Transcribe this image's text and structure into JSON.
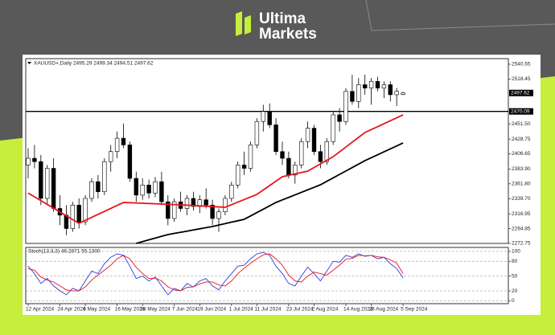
{
  "brand": {
    "line1": "Ultima",
    "line2": "Markets"
  },
  "chart_data": [
    {
      "type": "candlestick",
      "title": "XAUUSD+,Daily  2495.29 2499.34 2494.51 2497.62",
      "categories": [
        "12 Apr 2024",
        null,
        null,
        null,
        null,
        "24 Apr 2024",
        null,
        null,
        null,
        "6 May 2024",
        null,
        null,
        null,
        null,
        "16 May 2024",
        null,
        null,
        null,
        "28 May 2024",
        null,
        null,
        null,
        null,
        "7 Jun 2024",
        null,
        null,
        null,
        "19 Jun 2024",
        null,
        null,
        null,
        null,
        "1 Jul 2024",
        null,
        null,
        null,
        "11 Jul 2024",
        null,
        null,
        null,
        null,
        "23 Jul 2024",
        null,
        null,
        null,
        "2 Aug 2024",
        null,
        null,
        null,
        null,
        "14 Aug 2024",
        null,
        null,
        null,
        "26 Aug 2024",
        null,
        null,
        null,
        null,
        "5 Sep 2024"
      ],
      "candles": [
        [
          2390,
          2415,
          2370,
          2400
        ],
        [
          2400,
          2420,
          2385,
          2395
        ],
        [
          2395,
          2405,
          2330,
          2340
        ],
        [
          2340,
          2390,
          2330,
          2385
        ],
        [
          2385,
          2400,
          2320,
          2325
        ],
        [
          2325,
          2345,
          2300,
          2315
        ],
        [
          2315,
          2330,
          2285,
          2295
        ],
        [
          2295,
          2335,
          2290,
          2330
        ],
        [
          2330,
          2340,
          2295,
          2305
        ],
        [
          2305,
          2345,
          2300,
          2340
        ],
        [
          2340,
          2370,
          2335,
          2365
        ],
        [
          2365,
          2375,
          2340,
          2350
        ],
        [
          2350,
          2400,
          2345,
          2395
        ],
        [
          2395,
          2420,
          2380,
          2410
        ],
        [
          2410,
          2440,
          2400,
          2430
        ],
        [
          2430,
          2452,
          2415,
          2420
        ],
        [
          2420,
          2425,
          2365,
          2370
        ],
        [
          2370,
          2380,
          2335,
          2345
        ],
        [
          2345,
          2370,
          2338,
          2360
        ],
        [
          2360,
          2368,
          2340,
          2348
        ],
        [
          2348,
          2372,
          2342,
          2365
        ],
        [
          2365,
          2380,
          2330,
          2335
        ],
        [
          2335,
          2345,
          2300,
          2310
        ],
        [
          2310,
          2340,
          2305,
          2335
        ],
        [
          2335,
          2350,
          2320,
          2325
        ],
        [
          2325,
          2345,
          2315,
          2340
        ],
        [
          2340,
          2350,
          2322,
          2328
        ],
        [
          2328,
          2345,
          2318,
          2338
        ],
        [
          2338,
          2355,
          2325,
          2330
        ],
        [
          2330,
          2338,
          2300,
          2310
        ],
        [
          2310,
          2325,
          2290,
          2320
        ],
        [
          2320,
          2345,
          2315,
          2340
        ],
        [
          2340,
          2365,
          2335,
          2360
        ],
        [
          2360,
          2395,
          2355,
          2390
        ],
        [
          2390,
          2410,
          2375,
          2385
        ],
        [
          2385,
          2425,
          2380,
          2420
        ],
        [
          2420,
          2460,
          2415,
          2455
        ],
        [
          2455,
          2480,
          2440,
          2470
        ],
        [
          2470,
          2482,
          2445,
          2450
        ],
        [
          2450,
          2460,
          2405,
          2410
        ],
        [
          2410,
          2425,
          2390,
          2400
        ],
        [
          2400,
          2410,
          2370,
          2375
        ],
        [
          2375,
          2395,
          2362,
          2390
        ],
        [
          2390,
          2430,
          2385,
          2425
        ],
        [
          2425,
          2455,
          2415,
          2445
        ],
        [
          2445,
          2450,
          2405,
          2410
        ],
        [
          2410,
          2420,
          2385,
          2395
        ],
        [
          2395,
          2430,
          2390,
          2425
        ],
        [
          2425,
          2470,
          2420,
          2465
        ],
        [
          2465,
          2475,
          2440,
          2455
        ],
        [
          2455,
          2505,
          2450,
          2500
        ],
        [
          2500,
          2525,
          2480,
          2485
        ],
        [
          2485,
          2520,
          2475,
          2510
        ],
        [
          2510,
          2525,
          2495,
          2505
        ],
        [
          2505,
          2520,
          2480,
          2515
        ],
        [
          2515,
          2522,
          2500,
          2505
        ],
        [
          2505,
          2515,
          2490,
          2510
        ],
        [
          2510,
          2515,
          2485,
          2495
        ],
        [
          2495,
          2505,
          2478,
          2500
        ],
        [
          2495.29,
          2499.34,
          2494.51,
          2497.62
        ]
      ],
      "up_color": "#ffffff",
      "down_color": "#000000",
      "series": [
        {
          "color": "#e8141c",
          "values": [
            2348,
            2342.4,
            2336.7,
            2331.1,
            2325.4,
            2319.8,
            2314.1,
            2308.5,
            2302.8,
            2307.3,
            2311.7,
            2316.2,
            2320.6,
            2325.1,
            2329.5,
            2334,
            2333.6,
            2333.2,
            2332.8,
            2332.4,
            2332,
            2331.6,
            2331.2,
            2330.8,
            2330.4,
            2329.9,
            2329.4,
            2328.9,
            2328.3,
            2327.8,
            2327.3,
            2326.8,
            2330.6,
            2334.5,
            2338.3,
            2342.2,
            2346,
            2352.6,
            2359.2,
            2365.8,
            2372.4,
            2374.5,
            2376.6,
            2378.7,
            2380.8,
            2386.2,
            2391.6,
            2397,
            2402.4,
            2409.6,
            2416.8,
            2424.1,
            2431.3,
            2438.5,
            2442.9,
            2447.3,
            2451.7,
            2456.1,
            2460.5,
            2464.9
          ]
        },
        {
          "color": "#000000",
          "values": [
            null,
            null,
            null,
            null,
            null,
            null,
            null,
            null,
            null,
            null,
            null,
            null,
            null,
            null,
            null,
            null,
            null,
            2272.8,
            2275.4,
            2278.1,
            2280.7,
            2283.4,
            2286,
            2287.7,
            2289.4,
            2291.1,
            2292.9,
            2294.6,
            2296.3,
            2298,
            2300.2,
            2302.3,
            2304.5,
            2306.6,
            2308.8,
            2313.8,
            2318.9,
            2323.9,
            2329,
            2334,
            2337.8,
            2341.5,
            2345.3,
            2349.1,
            2352.9,
            2356.6,
            2360.4,
            2365.6,
            2370.7,
            2375.9,
            2381,
            2386.2,
            2391.3,
            2396.5,
            2400.9,
            2405.3,
            2409.7,
            2414.1,
            2418.5,
            2422.9
          ]
        }
      ],
      "hline": 2470.09,
      "ylim": [
        2272.75,
        2548.96
      ],
      "yticks": [
        2540.55,
        2518.45,
        {
          "value": 2451.5,
          "label": "2451.50"
        },
        2428.75,
        2406.65,
        {
          "value": 2383.9,
          "label": "2383.90"
        },
        {
          "value": 2361.8,
          "label": "2361.80"
        },
        {
          "value": 2339.7,
          "label": "2339.70"
        },
        2316.95,
        2294.85,
        2272.75
      ]
    },
    {
      "type": "line",
      "title": "Stoch(13,3,3) 46.2871 55.1300",
      "series": [
        {
          "color": "#2a3fe0",
          "values": [
            70,
            55,
            35,
            45,
            30,
            20,
            12,
            25,
            20,
            40,
            60,
            55,
            75,
            88,
            95,
            92,
            70,
            45,
            50,
            40,
            48,
            30,
            12,
            25,
            20,
            35,
            28,
            40,
            45,
            30,
            22,
            40,
            55,
            70,
            72,
            85,
            95,
            98,
            92,
            70,
            55,
            35,
            30,
            50,
            68,
            55,
            40,
            60,
            80,
            78,
            92,
            88,
            95,
            90,
            92,
            85,
            88,
            75,
            65,
            46.29
          ]
        },
        {
          "color": "#e8141c",
          "values": [
            65,
            62,
            48,
            42,
            38,
            30,
            22,
            20,
            20,
            28,
            42,
            52,
            62,
            72,
            85,
            92,
            85,
            68,
            55,
            45,
            46,
            40,
            28,
            22,
            20,
            27,
            28,
            34,
            38,
            38,
            32,
            30,
            40,
            55,
            66,
            76,
            85,
            93,
            95,
            85,
            72,
            52,
            40,
            38,
            50,
            58,
            55,
            52,
            62,
            72,
            84,
            86,
            92,
            91,
            92,
            89,
            88,
            83,
            76,
            55.13
          ]
        }
      ],
      "ylim": [
        -6,
        108
      ],
      "yticks": [
        0,
        20,
        50,
        80,
        100
      ],
      "grid": true
    }
  ]
}
